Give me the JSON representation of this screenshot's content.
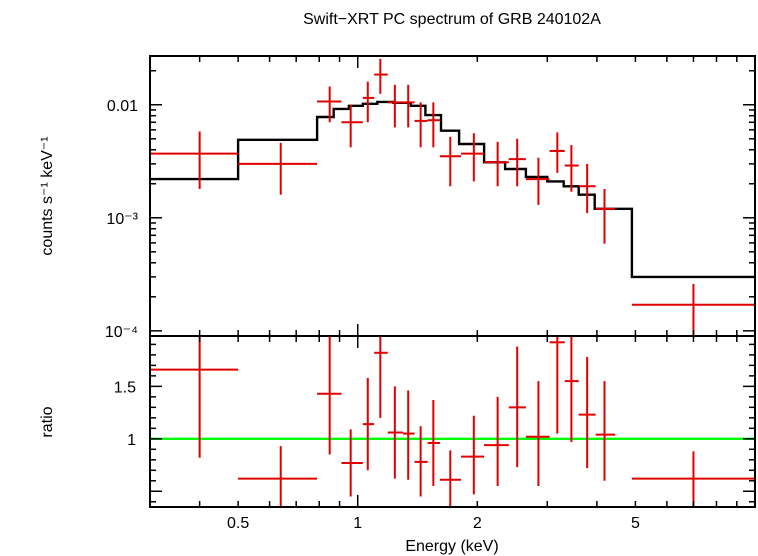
{
  "chart_data": [
    {
      "type": "scatter",
      "panel": "spectrum",
      "title": "Swift−XRT PC spectrum of GRB 240102A",
      "ylabel": "counts s⁻¹ keV⁻¹",
      "yscale": "log",
      "xscale": "log",
      "xlim": [
        0.3,
        10
      ],
      "ylim": [
        9e-05,
        0.027
      ],
      "y_ticks": [
        {
          "value": 0.01,
          "label": "0.01"
        },
        {
          "value": 0.001,
          "label": "10⁻³"
        },
        {
          "value": 0.0001,
          "label": "10⁻⁴"
        }
      ],
      "data_color": "#e00000",
      "model_color": "#000000",
      "series": [
        {
          "kind": "data",
          "points": [
            {
              "x": 0.4,
              "xlo": 0.3,
              "xhi": 0.5,
              "y": 0.0037,
              "ylo": 0.0018,
              "yhi": 0.0058
            },
            {
              "x": 0.64,
              "xlo": 0.5,
              "xhi": 0.79,
              "y": 0.003,
              "ylo": 0.0016,
              "yhi": 0.0046
            },
            {
              "x": 0.85,
              "xlo": 0.79,
              "xhi": 0.91,
              "y": 0.0107,
              "ylo": 0.007,
              "yhi": 0.0145
            },
            {
              "x": 0.96,
              "xlo": 0.91,
              "xhi": 1.03,
              "y": 0.007,
              "ylo": 0.0042,
              "yhi": 0.01
            },
            {
              "x": 1.06,
              "xlo": 1.03,
              "xhi": 1.1,
              "y": 0.0115,
              "ylo": 0.007,
              "yhi": 0.016
            },
            {
              "x": 1.14,
              "xlo": 1.1,
              "xhi": 1.19,
              "y": 0.0185,
              "ylo": 0.0125,
              "yhi": 0.0255
            },
            {
              "x": 1.24,
              "xlo": 1.19,
              "xhi": 1.3,
              "y": 0.0105,
              "ylo": 0.0063,
              "yhi": 0.015
            },
            {
              "x": 1.34,
              "xlo": 1.3,
              "xhi": 1.39,
              "y": 0.0105,
              "ylo": 0.0063,
              "yhi": 0.015
            },
            {
              "x": 1.44,
              "xlo": 1.39,
              "xhi": 1.5,
              "y": 0.0072,
              "ylo": 0.0042,
              "yhi": 0.0105
            },
            {
              "x": 1.55,
              "xlo": 1.5,
              "xhi": 1.61,
              "y": 0.0073,
              "ylo": 0.0042,
              "yhi": 0.0105
            },
            {
              "x": 1.71,
              "xlo": 1.61,
              "xhi": 1.82,
              "y": 0.0035,
              "ylo": 0.0019,
              "yhi": 0.0052
            },
            {
              "x": 1.96,
              "xlo": 1.82,
              "xhi": 2.08,
              "y": 0.0037,
              "ylo": 0.0021,
              "yhi": 0.0056
            },
            {
              "x": 2.25,
              "xlo": 2.08,
              "xhi": 2.4,
              "y": 0.0031,
              "ylo": 0.0019,
              "yhi": 0.0047
            },
            {
              "x": 2.52,
              "xlo": 2.4,
              "xhi": 2.65,
              "y": 0.0033,
              "ylo": 0.0019,
              "yhi": 0.005
            },
            {
              "x": 2.85,
              "xlo": 2.65,
              "xhi": 3.04,
              "y": 0.0022,
              "ylo": 0.0013,
              "yhi": 0.0034
            },
            {
              "x": 3.18,
              "xlo": 3.04,
              "xhi": 3.32,
              "y": 0.0039,
              "ylo": 0.0025,
              "yhi": 0.0057
            },
            {
              "x": 3.45,
              "xlo": 3.32,
              "xhi": 3.6,
              "y": 0.0029,
              "ylo": 0.0017,
              "yhi": 0.0044
            },
            {
              "x": 3.78,
              "xlo": 3.6,
              "xhi": 3.97,
              "y": 0.0019,
              "ylo": 0.0011,
              "yhi": 0.003
            },
            {
              "x": 4.18,
              "xlo": 3.97,
              "xhi": 4.45,
              "y": 0.0012,
              "ylo": 0.00059,
              "yhi": 0.0018
            },
            {
              "x": 7.0,
              "xlo": 4.9,
              "xhi": 10.0,
              "y": 0.00017,
              "ylo": 9e-05,
              "yhi": 0.00026
            }
          ]
        },
        {
          "kind": "model",
          "steps": [
            [
              0.3,
              0.5,
              0.0022
            ],
            [
              0.5,
              0.79,
              0.0049
            ],
            [
              0.79,
              0.87,
              0.0078
            ],
            [
              0.87,
              0.95,
              0.0092
            ],
            [
              0.95,
              1.03,
              0.0098
            ],
            [
              1.03,
              1.12,
              0.0102
            ],
            [
              1.12,
              1.23,
              0.0106
            ],
            [
              1.23,
              1.36,
              0.0104
            ],
            [
              1.36,
              1.48,
              0.0098
            ],
            [
              1.48,
              1.62,
              0.0081
            ],
            [
              1.62,
              1.8,
              0.0059
            ],
            [
              1.8,
              2.08,
              0.0045
            ],
            [
              2.08,
              2.35,
              0.0031
            ],
            [
              2.35,
              2.65,
              0.0027
            ],
            [
              2.65,
              3.0,
              0.0023
            ],
            [
              3.0,
              3.3,
              0.0021
            ],
            [
              3.3,
              3.6,
              0.0019
            ],
            [
              3.6,
              3.95,
              0.0016
            ],
            [
              3.95,
              4.45,
              0.0012
            ],
            [
              4.45,
              4.9,
              0.0012
            ],
            [
              4.9,
              10.0,
              0.0003
            ]
          ]
        }
      ]
    },
    {
      "type": "scatter",
      "panel": "ratio",
      "xlabel": "Energy (keV)",
      "ylabel": "ratio",
      "xscale": "log",
      "xlim": [
        0.3,
        10
      ],
      "ylim": [
        0.35,
        1.98
      ],
      "x_ticks": [
        {
          "value": 0.5,
          "label": "0.5"
        },
        {
          "value": 1,
          "label": "1"
        },
        {
          "value": 2,
          "label": "2"
        },
        {
          "value": 5,
          "label": "5"
        }
      ],
      "y_ticks": [
        {
          "value": 1,
          "label": "1"
        },
        {
          "value": 1.5,
          "label": "1.5"
        }
      ],
      "reference_line": {
        "value": 1,
        "color": "#00ff00"
      },
      "data_color": "#e00000",
      "points": [
        {
          "x": 0.4,
          "xlo": 0.3,
          "xhi": 0.5,
          "y": 1.66,
          "ylo": 0.82,
          "yhi": 1.98
        },
        {
          "x": 0.64,
          "xlo": 0.5,
          "xhi": 0.79,
          "y": 0.62,
          "ylo": 0.35,
          "yhi": 0.93
        },
        {
          "x": 0.85,
          "xlo": 0.79,
          "xhi": 0.91,
          "y": 1.43,
          "ylo": 0.85,
          "yhi": 1.98
        },
        {
          "x": 0.96,
          "xlo": 0.91,
          "xhi": 1.03,
          "y": 0.77,
          "ylo": 0.45,
          "yhi": 1.09
        },
        {
          "x": 1.06,
          "xlo": 1.03,
          "xhi": 1.1,
          "y": 1.14,
          "ylo": 0.7,
          "yhi": 1.58
        },
        {
          "x": 1.14,
          "xlo": 1.1,
          "xhi": 1.19,
          "y": 1.82,
          "ylo": 1.2,
          "yhi": 1.98
        },
        {
          "x": 1.24,
          "xlo": 1.19,
          "xhi": 1.3,
          "y": 1.06,
          "ylo": 0.62,
          "yhi": 1.5
        },
        {
          "x": 1.34,
          "xlo": 1.3,
          "xhi": 1.39,
          "y": 1.05,
          "ylo": 0.61,
          "yhi": 1.46
        },
        {
          "x": 1.44,
          "xlo": 1.39,
          "xhi": 1.5,
          "y": 0.78,
          "ylo": 0.45,
          "yhi": 1.12
        },
        {
          "x": 1.55,
          "xlo": 1.5,
          "xhi": 1.61,
          "y": 0.96,
          "ylo": 0.55,
          "yhi": 1.37
        },
        {
          "x": 1.71,
          "xlo": 1.61,
          "xhi": 1.82,
          "y": 0.61,
          "ylo": 0.35,
          "yhi": 0.89
        },
        {
          "x": 1.96,
          "xlo": 1.82,
          "xhi": 2.08,
          "y": 0.83,
          "ylo": 0.47,
          "yhi": 1.22
        },
        {
          "x": 2.25,
          "xlo": 2.08,
          "xhi": 2.4,
          "y": 0.94,
          "ylo": 0.55,
          "yhi": 1.4
        },
        {
          "x": 2.52,
          "xlo": 2.4,
          "xhi": 2.65,
          "y": 1.3,
          "ylo": 0.73,
          "yhi": 1.88
        },
        {
          "x": 2.85,
          "xlo": 2.65,
          "xhi": 3.04,
          "y": 1.02,
          "ylo": 0.55,
          "yhi": 1.55
        },
        {
          "x": 3.18,
          "xlo": 3.04,
          "xhi": 3.32,
          "y": 1.92,
          "ylo": 1.05,
          "yhi": 1.98
        },
        {
          "x": 3.45,
          "xlo": 3.32,
          "xhi": 3.6,
          "y": 1.55,
          "ylo": 0.97,
          "yhi": 1.98
        },
        {
          "x": 3.78,
          "xlo": 3.6,
          "xhi": 3.97,
          "y": 1.23,
          "ylo": 0.72,
          "yhi": 1.78
        },
        {
          "x": 4.18,
          "xlo": 3.97,
          "xhi": 4.45,
          "y": 1.04,
          "ylo": 0.6,
          "yhi": 1.55
        },
        {
          "x": 7.0,
          "xlo": 4.9,
          "xhi": 10.0,
          "y": 0.62,
          "ylo": 0.35,
          "yhi": 0.88
        }
      ]
    }
  ]
}
